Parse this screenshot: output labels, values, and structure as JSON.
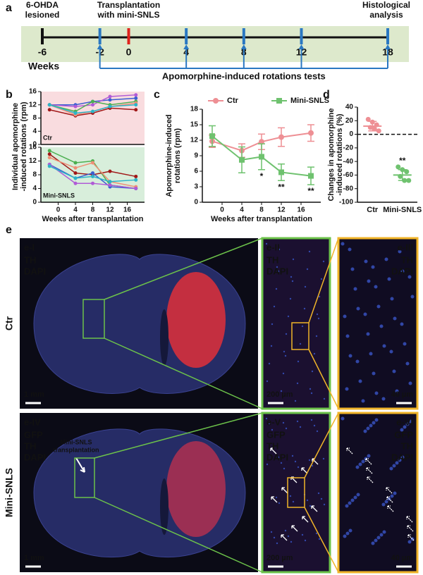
{
  "timeline": {
    "label": "a",
    "xlim": [
      -6,
      18
    ],
    "ticks": [
      -6,
      -2,
      0,
      4,
      8,
      12,
      18
    ],
    "tick_colors": [
      "#111111",
      "#2a78c2",
      "#e0231c",
      "#2a78c2",
      "#2a78c2",
      "#2a78c2",
      "#2a78c2"
    ],
    "axis_label": "Weeks",
    "notes": [
      {
        "lines": [
          "6-OHDA",
          "lesioned"
        ],
        "week": -6,
        "color": "#111111"
      },
      {
        "lines": [
          "Transplantation",
          "with mini-SNLS"
        ],
        "week": 0,
        "color": "#e0231c"
      },
      {
        "lines": [
          "Histological",
          "analysis"
        ],
        "week": 18,
        "color": "#111111"
      }
    ],
    "tests": {
      "text": "Apomorphine-induced rotations tests",
      "weeks": [
        -2,
        4,
        8,
        12,
        18
      ],
      "color": "#2a78c2"
    }
  },
  "chart_data": [
    {
      "type": "line",
      "label": "b",
      "annotation": "Ctr",
      "background": "#f9dcdf",
      "ylabel": [
        "Individual apomorphine",
        "-induced rotations (rpm)"
      ],
      "x": [
        -2,
        4,
        8,
        12,
        18
      ],
      "xlim": [
        -4,
        20
      ],
      "ylim": [
        0,
        16
      ],
      "yticks": [
        0,
        4,
        8,
        12,
        16
      ],
      "series": [
        {
          "color": "#a01818",
          "values": [
            10.5,
            8.7,
            9.5,
            11,
            10.5
          ]
        },
        {
          "color": "#3b5fd1",
          "values": [
            12,
            12,
            13,
            13.5,
            14
          ]
        },
        {
          "color": "#b05bd6",
          "values": [
            12,
            11.5,
            12,
            14.5,
            15
          ]
        },
        {
          "color": "#4caf50",
          "values": [
            12,
            10,
            13,
            12,
            13
          ]
        },
        {
          "color": "#ef8f76",
          "values": [
            12,
            9,
            10,
            11.5,
            12.5
          ]
        },
        {
          "color": "#2cb5c8",
          "values": [
            12,
            9.5,
            10,
            11.5,
            12
          ]
        }
      ]
    },
    {
      "type": "line",
      "annotation": "Mini-SNLS",
      "background": "#d8eedb",
      "xlabel": "Weeks after transplantation",
      "x": [
        -2,
        4,
        8,
        12,
        18
      ],
      "xlim": [
        -4,
        20
      ],
      "xticks": [
        0,
        4,
        8,
        12,
        16
      ],
      "ylim": [
        0,
        16
      ],
      "yticks": [
        0,
        4,
        8,
        12,
        16
      ],
      "series": [
        {
          "color": "#4caf50",
          "values": [
            15,
            11.5,
            12,
            5,
            4
          ]
        },
        {
          "color": "#a01818",
          "values": [
            14,
            8.5,
            8,
            9,
            7.5
          ]
        },
        {
          "color": "#ef8f76",
          "values": [
            13,
            10,
            11.5,
            6,
            4.5
          ]
        },
        {
          "color": "#3b5fd1",
          "values": [
            11,
            7,
            8.5,
            4.5,
            4
          ]
        },
        {
          "color": "#b05bd6",
          "values": [
            11,
            5.5,
            5.5,
            5,
            4
          ]
        },
        {
          "color": "#2cb5c8",
          "values": [
            10.5,
            7,
            7.5,
            6,
            6.5
          ]
        }
      ]
    },
    {
      "type": "errorline",
      "label": "c",
      "ylabel": [
        "Apomorphine-induced",
        "rotations (rpm)"
      ],
      "xlabel": "Weeks after transplantation",
      "x": [
        -2,
        4,
        8,
        12,
        18
      ],
      "xlim": [
        -4,
        20
      ],
      "xticks": [
        0,
        4,
        8,
        12,
        16
      ],
      "ylim": [
        0,
        18
      ],
      "yticks": [
        0,
        3,
        6,
        9,
        12,
        15,
        18
      ],
      "legend": "top",
      "series": [
        {
          "name": "Ctr",
          "color": "#ee8f94",
          "marker": "circle",
          "values": [
            11.8,
            10,
            11.7,
            12.6,
            13.4
          ],
          "errors": [
            1.2,
            1.3,
            1.5,
            1.8,
            1.6
          ]
        },
        {
          "name": "Mini-SNLS",
          "color": "#6fc26f",
          "marker": "square",
          "values": [
            12.8,
            8.2,
            8.8,
            5.8,
            5.1
          ],
          "errors": [
            2,
            2.5,
            2.5,
            1.6,
            1.7
          ]
        }
      ],
      "annotations": [
        {
          "text": "*",
          "x": 8
        },
        {
          "text": "**",
          "x": 12
        },
        {
          "text": "**",
          "x": 18
        }
      ]
    },
    {
      "type": "dotplot",
      "label": "d",
      "ylabel": [
        "Changes in apomorphine",
        "-induced rotations (%)"
      ],
      "categories": [
        "Ctr",
        "Mini-SNLS"
      ],
      "colors": [
        "#ee8f94",
        "#6fc26f"
      ],
      "ylim": [
        -100,
        40
      ],
      "yticks": [
        -100,
        -80,
        -60,
        -40,
        -20,
        0,
        20,
        40
      ],
      "points": [
        [
          22,
          18,
          14,
          10,
          8,
          5
        ],
        [
          -48,
          -52,
          -55,
          -62,
          -68,
          -68
        ]
      ],
      "means": [
        12,
        -60
      ],
      "sds": [
        7,
        8
      ],
      "reference_line": 0,
      "annotations": [
        {
          "text": "**",
          "category": 1
        }
      ]
    }
  ],
  "panel_e": {
    "label": "e",
    "stain_colors": {
      "GFP": "#3ecf3e",
      "TH": "#ff3030",
      "DAPI": "#3a9cff"
    },
    "rows": [
      {
        "name": "Ctr",
        "panels": [
          {
            "id": "e-I",
            "stains": [
              "TH",
              "DAPI"
            ],
            "scale_bar": "1 mm"
          },
          {
            "id": "e-II",
            "stains": [
              "TH",
              "DAPI"
            ],
            "scale_bar": "200 µm"
          },
          {
            "id": "e-III",
            "stains": [
              "TH",
              "DAPI"
            ],
            "scale_bar": "40 µm"
          }
        ]
      },
      {
        "name": "Mini-SNLS",
        "panels": [
          {
            "id": "e-IV",
            "stains": [
              "GFP",
              "TH",
              "DAPI"
            ],
            "scale_bar": "1 mm",
            "annotation": [
              "Mini-SNLS",
              "transplantation"
            ]
          },
          {
            "id": "e-V",
            "stains": [
              "GFP",
              "TH",
              "DAPI"
            ],
            "scale_bar": "200 µm"
          },
          {
            "id": "e-VI",
            "stains": [
              "GFP",
              "TH",
              "DAPI"
            ],
            "scale_bar": "40 µm"
          }
        ]
      }
    ]
  }
}
